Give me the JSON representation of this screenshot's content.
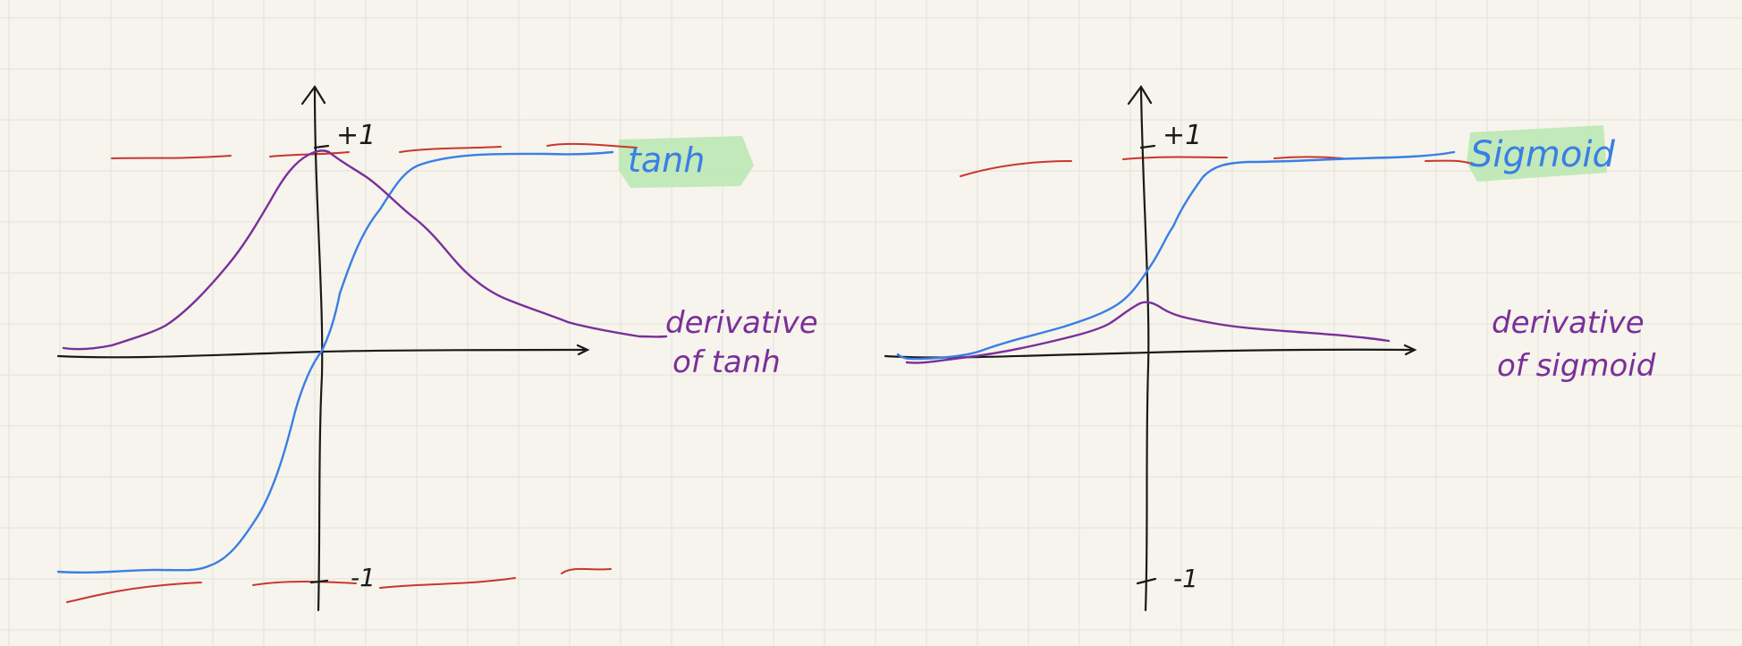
{
  "colors": {
    "paper": "#f6f4ec",
    "grid": "#e3e1d8",
    "axis": "#1a1a1a",
    "function_curve": "#3a7ee6",
    "derivative_curve": "#7a2f9a",
    "asymptote": "#c8372d",
    "highlight": "#b8e6b0"
  },
  "left_panel": {
    "plus_label": "+1",
    "minus_label": "-1",
    "function_label": "tanh",
    "derivative_label_line1": "derivative",
    "derivative_label_line2": "of tanh"
  },
  "right_panel": {
    "plus_label": "+1",
    "minus_label": "-1",
    "function_label": "Sigmoid",
    "derivative_label_line1": "derivative",
    "derivative_label_line2": "of sigmoid"
  }
}
